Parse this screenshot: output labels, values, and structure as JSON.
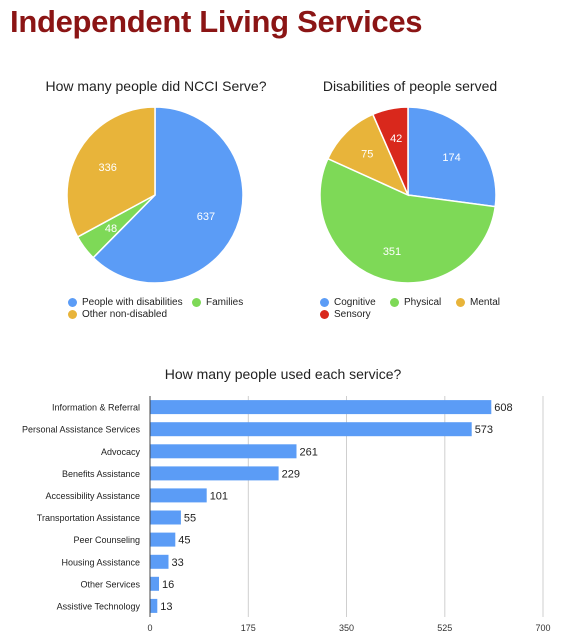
{
  "page": {
    "title": "Independent Living Services"
  },
  "chart_data": [
    {
      "type": "pie",
      "title": "How many people did NCCI Serve?",
      "categories": [
        "People with disabilities",
        "Families",
        "Other non-disabled"
      ],
      "values": [
        637,
        48,
        336
      ],
      "colors": [
        "#5b9cf6",
        "#7ed957",
        "#e8b43a"
      ],
      "legend_placement": "bottom"
    },
    {
      "type": "pie",
      "title": "Disabilities of people served",
      "categories": [
        "Cognitive",
        "Physical",
        "Mental",
        "Sensory"
      ],
      "values": [
        174,
        351,
        75,
        42
      ],
      "colors": [
        "#5b9cf6",
        "#7ed957",
        "#e8b43a",
        "#d9281c"
      ],
      "legend_placement": "bottom"
    },
    {
      "type": "bar",
      "orientation": "horizontal",
      "title": "How many people used each service?",
      "categories": [
        "Information & Referral",
        "Personal Assistance Services",
        "Advocacy",
        "Benefits Assistance",
        "Accessibility Assistance",
        "Transportation Assistance",
        "Peer Counseling",
        "Housing Assistance",
        "Other Services",
        "Assistive Technology"
      ],
      "values": [
        608,
        573,
        261,
        229,
        101,
        55,
        45,
        33,
        16,
        13
      ],
      "color": "#5b9cf6",
      "xlim": [
        0,
        700
      ],
      "xticks": [
        "0",
        "175",
        "350",
        "525",
        "700"
      ],
      "grid": true
    }
  ]
}
